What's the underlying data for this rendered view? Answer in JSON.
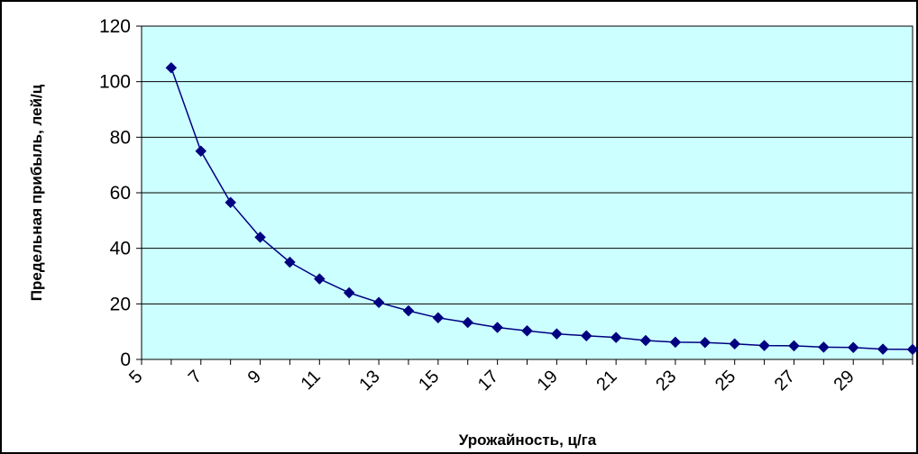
{
  "chart_data": {
    "type": "line",
    "title": "",
    "xlabel": "Урожайность, ц/га",
    "ylabel": "Предельная прибыль, лей/ц",
    "ylim": [
      0,
      120
    ],
    "xlim": [
      5,
      31
    ],
    "y_ticks": [
      "0",
      "20",
      "40",
      "60",
      "80",
      "100",
      "120"
    ],
    "x_ticks": [
      "5",
      "7",
      "9",
      "11",
      "13",
      "15",
      "17",
      "19",
      "21",
      "23",
      "25",
      "27",
      "29"
    ],
    "grid": "horizontal",
    "legend": "none",
    "colors": {
      "plot_background": "#ccffff",
      "series": "#000080",
      "gridline": "#000000"
    },
    "series": [
      {
        "marker": "diamond",
        "x": [
          6,
          7,
          8,
          9,
          10,
          11,
          12,
          13,
          14,
          15,
          16,
          17,
          18,
          19,
          20,
          21,
          22,
          23,
          24,
          25,
          26,
          27,
          28,
          29,
          30,
          31
        ],
        "values": [
          105,
          75,
          56.5,
          44,
          35,
          29,
          24,
          20.5,
          17.5,
          15,
          13.3,
          11.5,
          10.3,
          9.2,
          8.5,
          7.9,
          6.8,
          6.2,
          6.1,
          5.6,
          5.0,
          4.9,
          4.4,
          4.3,
          3.7,
          3.6
        ]
      }
    ]
  }
}
